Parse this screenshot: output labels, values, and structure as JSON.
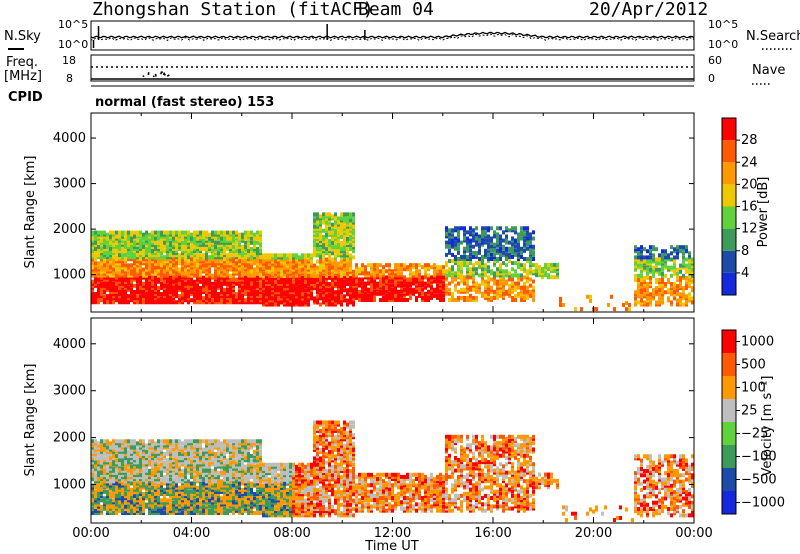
{
  "header": {
    "station": "Zhongshan Station (fitACF)",
    "beam": "Beam 04",
    "date": "20/Apr/2012"
  },
  "top_panel": {
    "left_label": "N.Sky",
    "right_label": "N.Search",
    "left_ticks": [
      "10^5",
      "10^0"
    ],
    "right_ticks": [
      "10^5",
      "10^0"
    ]
  },
  "freq_panel": {
    "left_label_1": "Freq.",
    "left_label_2": "[MHz]",
    "left_ticks": [
      "18",
      "8"
    ],
    "right_label": "Nave",
    "right_ticks": [
      "60",
      "0"
    ]
  },
  "cpid": {
    "label": "CPID",
    "text": "normal (fast stereo) 153"
  },
  "colors": {
    "red": "#ff0000",
    "orange_red": "#ff5a00",
    "orange": "#ff9900",
    "yellow": "#f0c800",
    "light_green": "#5fd23c",
    "green": "#3c9a5a",
    "dark_blue": "#1e4ba8",
    "blue": "#1428dc",
    "gray": "#bebebe"
  },
  "chart_data": [
    {
      "type": "heatmap",
      "quantity": "power",
      "ylabel": "Slant Range [km]",
      "ylim": [
        180,
        4550
      ],
      "yticks": [
        1000,
        2000,
        3000,
        4000
      ],
      "xlabel": "Time UT",
      "xlim_hours": [
        0,
        24
      ],
      "colorbar_label": "Power [dB]",
      "colorbar_ticks": [
        "4",
        "8",
        "12",
        "16",
        "20",
        "24",
        "28"
      ],
      "colorbar_colors": [
        "#1428dc",
        "#1e4ba8",
        "#3c9a5a",
        "#5fd23c",
        "#f0c800",
        "#ff9900",
        "#ff5a00",
        "#ff0000"
      ]
    },
    {
      "type": "heatmap",
      "quantity": "velocity",
      "ylabel": "Slant Range [km]",
      "ylim": [
        180,
        4550
      ],
      "yticks": [
        1000,
        2000,
        3000,
        4000
      ],
      "xlabel": "Time UT",
      "xlim_hours": [
        0,
        24
      ],
      "xtick_labels": [
        "00:00",
        "04:00",
        "08:00",
        "12:00",
        "16:00",
        "20:00",
        "00:00"
      ],
      "colorbar_label": "Velocity [m s⁻¹]",
      "colorbar_ticks": [
        "1000",
        "500",
        "100",
        "25",
        "−25",
        "−100",
        "−500",
        "−1000"
      ],
      "colorbar_colors": [
        "#1428dc",
        "#1e4ba8",
        "#3c9a5a",
        "#5fd23c",
        "#bebebe",
        "#ff9900",
        "#ff5a00",
        "#ff0000"
      ]
    }
  ]
}
